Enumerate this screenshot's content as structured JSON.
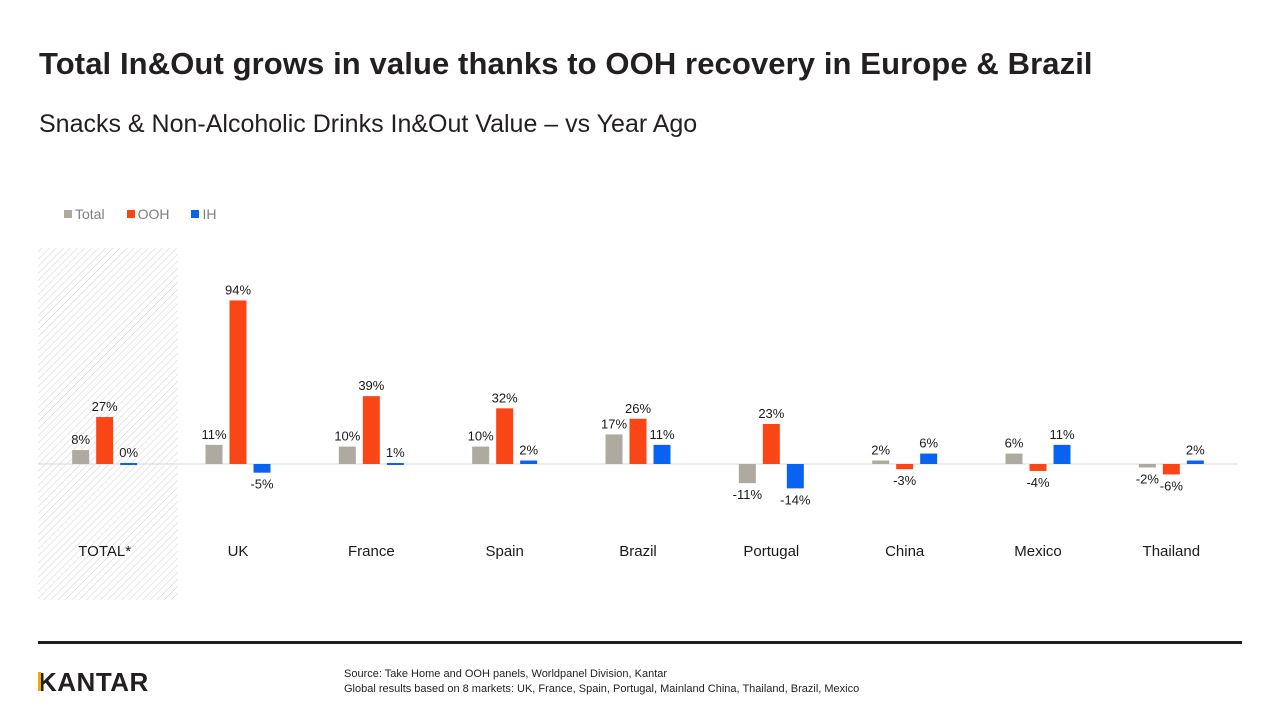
{
  "header": {
    "title": "Total In&Out grows in value thanks to OOH recovery in Europe & Brazil",
    "subtitle": "Snacks & Non-Alcoholic Drinks In&Out Value – vs Year Ago"
  },
  "colors": {
    "total": "#aeaaa0",
    "ooh": "#fa4616",
    "ih": "#0a63f0",
    "highlight_hatch": "#c8c8c8",
    "axis": "#d9d9d9"
  },
  "chart_data": {
    "type": "bar",
    "title": "",
    "xlabel": "",
    "ylabel": "",
    "ylim": [
      -20,
      100
    ],
    "grid": false,
    "legend": "top-left",
    "highlighted_category": "TOTAL*",
    "categories": [
      "TOTAL*",
      "UK",
      "France",
      "Spain",
      "Brazil",
      "Portugal",
      "China",
      "Mexico",
      "Thailand"
    ],
    "series": [
      {
        "key": "total",
        "name": "Total",
        "values": [
          8,
          11,
          10,
          10,
          17,
          -11,
          2,
          6,
          -2
        ],
        "labels": [
          "8%",
          "11%",
          "10%",
          "10%",
          "17%",
          "-11%",
          "2%",
          "6%",
          "-2%"
        ]
      },
      {
        "key": "ooh",
        "name": "OOH",
        "values": [
          27,
          94,
          39,
          32,
          26,
          23,
          -3,
          -4,
          -6
        ],
        "labels": [
          "27%",
          "94%",
          "39%",
          "32%",
          "26%",
          "23%",
          "-3%",
          "-4%",
          "-6%"
        ]
      },
      {
        "key": "ih",
        "name": "IH",
        "values": [
          0,
          -5,
          1,
          2,
          11,
          -14,
          6,
          11,
          2
        ],
        "labels": [
          "0%",
          "-5%",
          "1%",
          "2%",
          "11%",
          "-14%",
          "6%",
          "11%",
          "2%"
        ]
      }
    ]
  },
  "footer": {
    "logo": "KANTAR",
    "source_line1": "Source: Take Home and OOH panels, Worldpanel Division, Kantar",
    "source_line2": "Global results based on 8 markets: UK, France, Spain, Portugal, Mainland China, Thailand, Brazil, Mexico"
  }
}
